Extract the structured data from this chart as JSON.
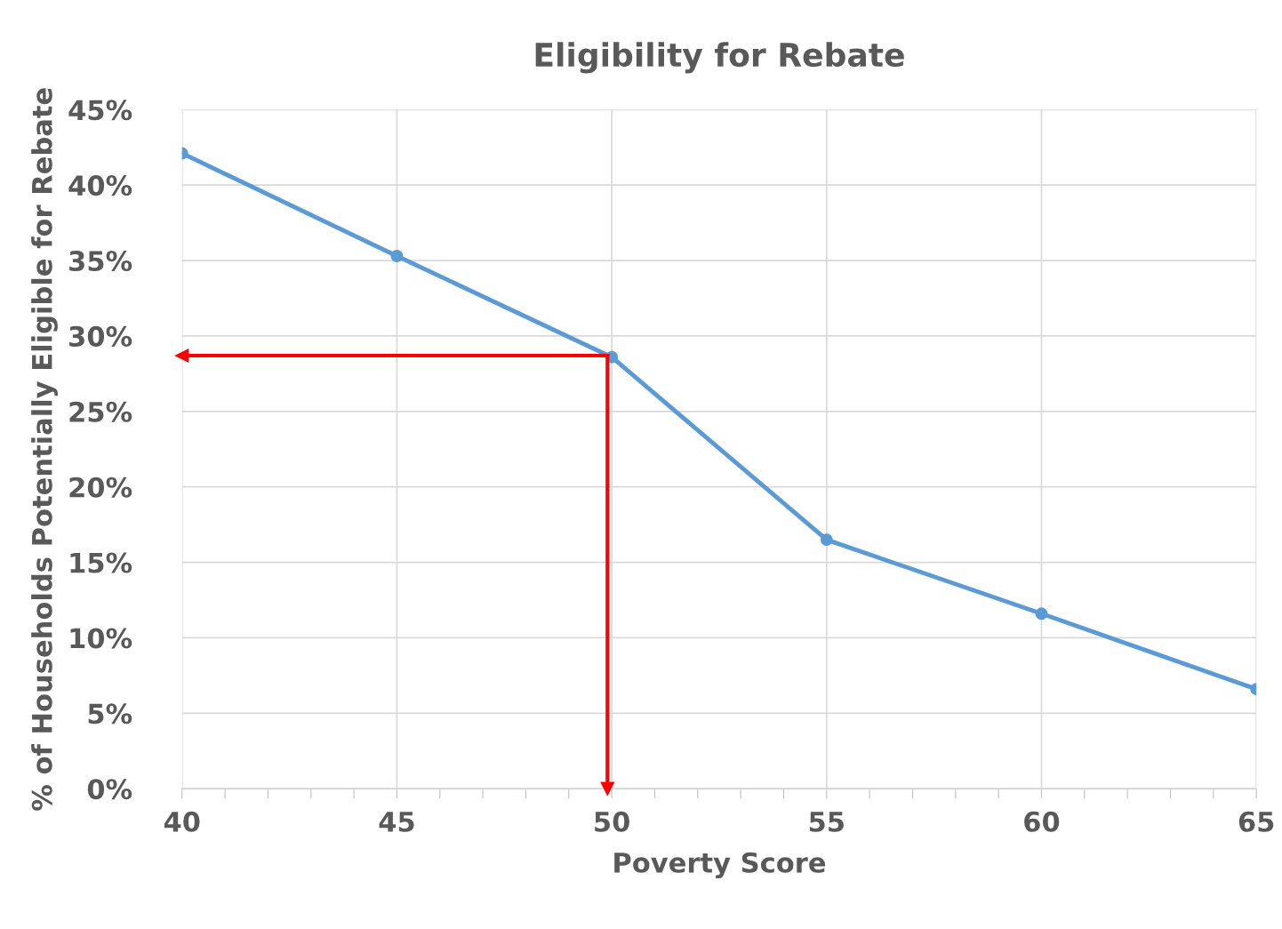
{
  "chart_data": {
    "type": "line",
    "title": "Eligibility for Rebate",
    "xlabel": "Poverty Score",
    "ylabel": "% of Households Potentially Eligible for Rebate",
    "x": [
      40,
      45,
      50,
      55,
      60,
      65
    ],
    "series": [
      {
        "color": "#5b9bd5",
        "values": [
          42.1,
          35.3,
          28.6,
          16.5,
          11.6,
          6.6
        ]
      }
    ],
    "xlim": [
      40,
      65
    ],
    "xticks": [
      40,
      {
        "value": 41,
        "label": null
      },
      {
        "value": 42,
        "label": null
      },
      {
        "value": 43,
        "label": null
      },
      {
        "value": 44,
        "label": null
      },
      45,
      {
        "value": 46,
        "label": null
      },
      {
        "value": 47,
        "label": null
      },
      {
        "value": 48,
        "label": null
      },
      {
        "value": 49,
        "label": null
      },
      50,
      {
        "value": 51,
        "label": null
      },
      {
        "value": 52,
        "label": null
      },
      {
        "value": 53,
        "label": null
      },
      {
        "value": 54,
        "label": null
      },
      55,
      {
        "value": 56,
        "label": null
      },
      {
        "value": 57,
        "label": null
      },
      {
        "value": 58,
        "label": null
      },
      {
        "value": 59,
        "label": null
      },
      60,
      {
        "value": 61,
        "label": null
      },
      {
        "value": 62,
        "label": null
      },
      {
        "value": 63,
        "label": null
      },
      {
        "value": 64,
        "label": null
      },
      65
    ],
    "ylim": [
      0,
      45
    ],
    "yticks": [
      {
        "value": 0,
        "label": "0%"
      },
      {
        "value": 5,
        "label": "5%"
      },
      {
        "value": 10,
        "label": "10%"
      },
      {
        "value": 15,
        "label": "15%"
      },
      {
        "value": 20,
        "label": "20%"
      },
      {
        "value": 25,
        "label": "25%"
      },
      {
        "value": 30,
        "label": "30%"
      },
      {
        "value": 35,
        "label": "35%"
      },
      {
        "value": 40,
        "label": "40%"
      },
      {
        "value": 45,
        "label": "45%"
      }
    ],
    "grid": true,
    "marker": "circle",
    "line_style": "solid",
    "ref_lines": [
      {
        "axis": "y",
        "value": 28.7,
        "color": "#ff0000"
      },
      {
        "axis": "x",
        "value": 49.9,
        "color": "#ff0000"
      }
    ]
  }
}
